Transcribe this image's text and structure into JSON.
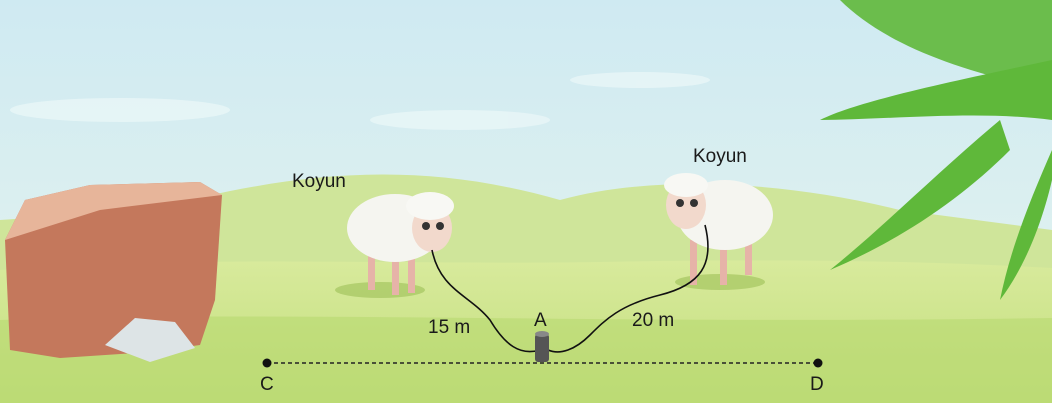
{
  "sheep": [
    {
      "label": "Koyun"
    },
    {
      "label": "Koyun"
    }
  ],
  "ropes": [
    {
      "label": "15 m"
    },
    {
      "label": "20 m"
    }
  ],
  "stake": {
    "label": "A"
  },
  "segment": {
    "start": "C",
    "end": "D"
  }
}
